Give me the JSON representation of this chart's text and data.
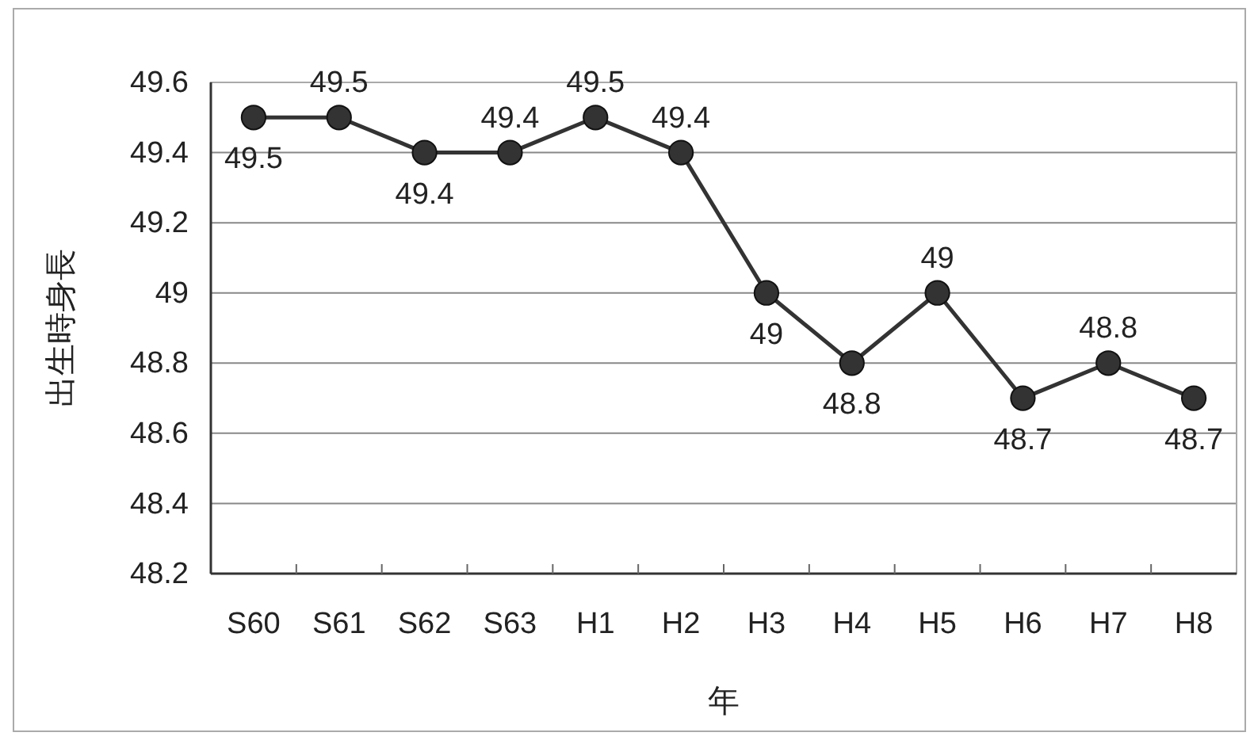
{
  "chart_data": {
    "type": "line",
    "xlabel": "年",
    "ylabel": "出生時身長",
    "categories": [
      "S60",
      "S61",
      "S62",
      "S63",
      "H1",
      "H2",
      "H3",
      "H4",
      "H5",
      "H6",
      "H7",
      "H8"
    ],
    "series": [
      {
        "color": "#333333",
        "values": [
          49.5,
          49.5,
          49.4,
          49.4,
          49.5,
          49.4,
          49,
          48.8,
          49,
          48.7,
          48.8,
          48.7
        ]
      }
    ],
    "ylim": [
      48.2,
      49.6
    ],
    "yticks": [
      48.2,
      48.4,
      48.6,
      48.8,
      49,
      49.2,
      49.4,
      49.6
    ],
    "grid": "y",
    "marker": "circle",
    "data_labels": true
  }
}
